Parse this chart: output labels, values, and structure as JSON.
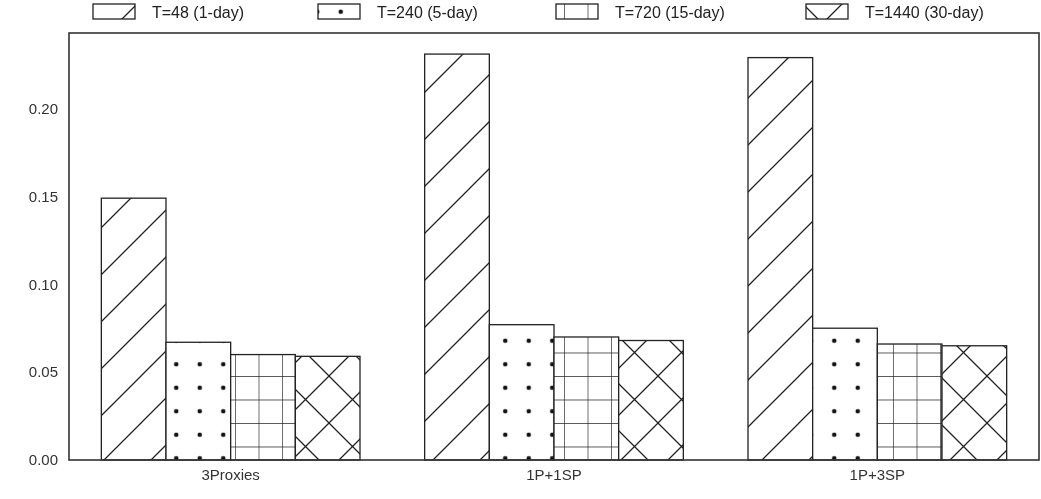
{
  "chart_data": {
    "type": "bar",
    "categories": [
      "3Proxies",
      "1P+1SP",
      "1P+3SP"
    ],
    "series": [
      {
        "name": "T=48 (1-day)",
        "color": "#222222",
        "values": [
          0.149,
          0.231,
          0.229
        ]
      },
      {
        "name": "T=240 (5-day)",
        "color": "#222222",
        "values": [
          0.067,
          0.077,
          0.075
        ]
      },
      {
        "name": "T=720 (15-day)",
        "color": "#222222",
        "values": [
          0.06,
          0.07,
          0.066
        ]
      },
      {
        "name": "T=1440 (30-day)",
        "color": "#222222",
        "values": [
          0.059,
          0.068,
          0.065
        ]
      }
    ],
    "ylim": [
      0,
      0.243
    ],
    "yticks": [
      {
        "value": 0,
        "label": "0.00"
      },
      {
        "value": 0.05,
        "label": "0.05"
      },
      {
        "value": 0.1,
        "label": "0.10"
      },
      {
        "value": 0.15,
        "label": "0.15"
      },
      {
        "value": 0.2,
        "label": "0.20"
      }
    ],
    "legend": "top",
    "grid": false
  }
}
